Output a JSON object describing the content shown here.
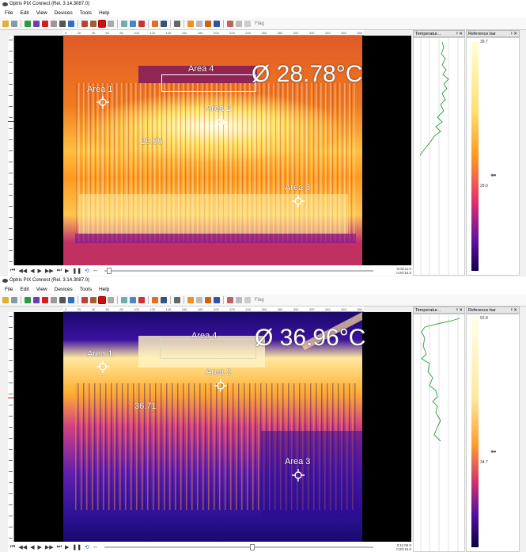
{
  "windows": [
    {
      "title": "Optris PIX Connect (Rel. 3.14.3087.0)",
      "menu": [
        "File",
        "Edit",
        "View",
        "Devices",
        "Tools",
        "Help"
      ],
      "toolbar_flag": "Flag",
      "ruler_labels": [
        "0",
        "20",
        "40",
        "60",
        "80",
        "100",
        "120",
        "140",
        "160",
        "180",
        "200",
        "220",
        "240",
        "260",
        "280",
        "300",
        "320",
        "340",
        "360",
        "380"
      ],
      "average_temp": "Ø 28.78°C",
      "spot_value": "29.35",
      "areas": {
        "a1": "Area 1",
        "a2": "Area 2",
        "a3": "Area 3",
        "a4": "Area 4"
      },
      "temp_panel_title": "Temperatur...",
      "ref_panel_title": "Reference bar",
      "ref_top_value": "39.7",
      "ref_marker_value": "29.0",
      "time_line1": "0:00:11.0",
      "time_line2": "0:20:15.0",
      "slider_position": 0.01
    },
    {
      "title": "Optris PIX Connect (Rel. 3.14.3087.0)",
      "menu": [
        "File",
        "Edit",
        "View",
        "Devices",
        "Tools",
        "Help"
      ],
      "toolbar_flag": "Flag",
      "ruler_labels": [
        "0",
        "20",
        "40",
        "60",
        "80",
        "100",
        "120",
        "140",
        "160",
        "180",
        "200",
        "220",
        "240",
        "260",
        "280",
        "300",
        "320",
        "340",
        "360",
        "380"
      ],
      "average_temp": "Ø 36.96°C",
      "spot_value": "36.71",
      "areas": {
        "a1": "Area 1",
        "a2": "Area 2",
        "a3": "Area 3",
        "a4": "Area 4"
      },
      "temp_panel_title": "Temperatur...",
      "ref_panel_title": "Reference bar",
      "ref_top_value": "52.8",
      "ref_marker_value": "34.7",
      "time_line1": "0:11:06.0",
      "time_line2": "0:20:15.0",
      "slider_position": 0.55
    }
  ],
  "colors": {
    "hot": "#ffffe0",
    "warm": "#ffb000",
    "mid": "#e8501a",
    "cool": "#a0207a",
    "cold": "#200070"
  }
}
